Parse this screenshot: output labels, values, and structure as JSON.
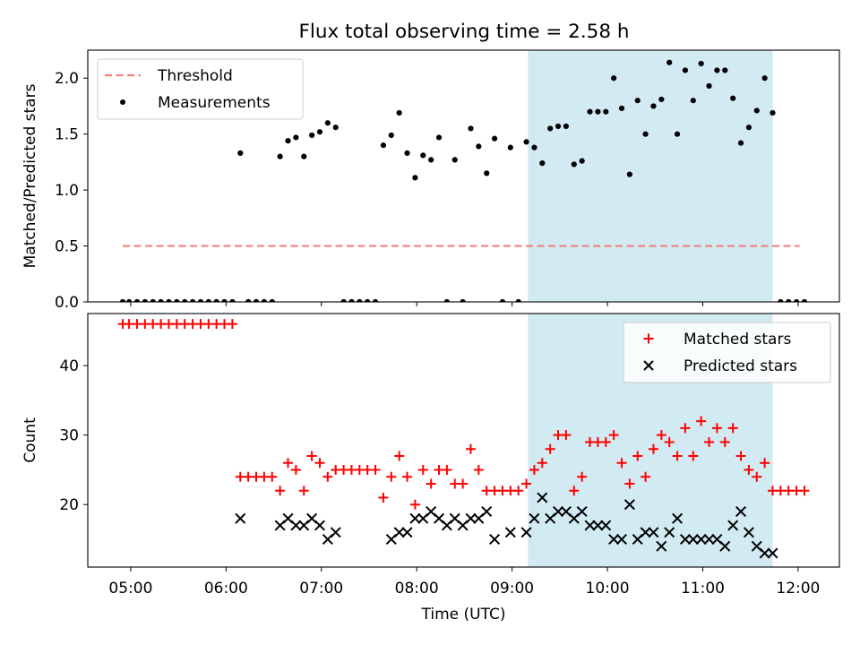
{
  "title": "Flux total observing time = 2.58 h",
  "colors": {
    "threshold": "#f08080",
    "measurement": "#000000",
    "matched": "#ff0000",
    "predicted": "#000000",
    "shade": "#add8e6"
  },
  "chart_data": [
    {
      "type": "scatter",
      "ylabel": "Matched/Predicted stars",
      "xlim": [
        "04:33",
        "12:26"
      ],
      "ylim": [
        0,
        2.25
      ],
      "yticks": [
        "0.0",
        "0.5",
        "1.0",
        "1.5",
        "2.0"
      ],
      "shaded_region": [
        "09:10",
        "11:44"
      ],
      "legend_position": "upper-left",
      "series": [
        {
          "name": "Threshold",
          "style": "dashed-line",
          "x": [
            "04:55",
            "12:01"
          ],
          "y": [
            0.5,
            0.5
          ]
        },
        {
          "name": "Measurements",
          "style": "dot",
          "x": [
            "04:55",
            "04:59",
            "05:04",
            "05:09",
            "05:14",
            "05:19",
            "05:24",
            "05:29",
            "05:34",
            "05:39",
            "05:44",
            "05:49",
            "05:54",
            "05:59",
            "06:04",
            "06:09",
            "06:14",
            "06:19",
            "06:24",
            "06:29",
            "06:34",
            "06:39",
            "06:44",
            "06:49",
            "06:54",
            "06:59",
            "07:04",
            "07:09",
            "07:14",
            "07:19",
            "07:24",
            "07:29",
            "07:34",
            "07:39",
            "07:44",
            "07:49",
            "07:54",
            "07:59",
            "08:04",
            "08:09",
            "08:14",
            "08:19",
            "08:24",
            "08:29",
            "08:34",
            "08:39",
            "08:44",
            "08:49",
            "08:54",
            "08:59",
            "09:04",
            "09:09",
            "09:14",
            "09:19",
            "09:24",
            "09:29",
            "09:34",
            "09:39",
            "09:44",
            "09:49",
            "09:54",
            "09:59",
            "10:04",
            "10:09",
            "10:14",
            "10:19",
            "10:24",
            "10:29",
            "10:34",
            "10:39",
            "10:44",
            "10:49",
            "10:54",
            "10:59",
            "11:04",
            "11:09",
            "11:14",
            "11:19",
            "11:24",
            "11:29",
            "11:34",
            "11:39",
            "11:44",
            "11:49",
            "11:54",
            "11:59",
            "12:04"
          ],
          "y": [
            0,
            0,
            0,
            0,
            0,
            0,
            0,
            0,
            0,
            0,
            0,
            0,
            0,
            0,
            0,
            1.33,
            0,
            0,
            0,
            0,
            1.3,
            1.44,
            1.47,
            1.3,
            1.49,
            1.52,
            1.6,
            1.56,
            0,
            0,
            0,
            0,
            0,
            1.4,
            1.49,
            1.69,
            1.33,
            1.11,
            1.31,
            1.27,
            1.47,
            0,
            1.27,
            0,
            1.55,
            1.39,
            1.15,
            1.46,
            0,
            1.38,
            0,
            1.43,
            1.38,
            1.24,
            1.55,
            1.57,
            1.57,
            1.23,
            1.26,
            1.7,
            1.7,
            1.7,
            2.0,
            1.73,
            1.14,
            1.8,
            1.5,
            1.75,
            1.81,
            2.14,
            1.5,
            2.07,
            1.8,
            2.13,
            1.93,
            2.07,
            2.07,
            1.82,
            1.42,
            1.56,
            1.71,
            2.0,
            1.69,
            0,
            0,
            0,
            0
          ]
        }
      ]
    },
    {
      "type": "scatter",
      "xlabel": "Time (UTC)",
      "ylabel": "Count",
      "xlim": [
        "04:33",
        "12:26"
      ],
      "ylim": [
        11,
        47.5
      ],
      "yticks": [
        "20",
        "30",
        "40"
      ],
      "xticks": [
        "05:00",
        "06:00",
        "07:00",
        "08:00",
        "09:00",
        "10:00",
        "11:00",
        "12:00"
      ],
      "shaded_region": [
        "09:10",
        "11:44"
      ],
      "legend_position": "upper-right",
      "series": [
        {
          "name": "Matched stars",
          "style": "plus",
          "x": [
            "04:55",
            "04:59",
            "05:04",
            "05:09",
            "05:14",
            "05:19",
            "05:24",
            "05:29",
            "05:34",
            "05:39",
            "05:44",
            "05:49",
            "05:54",
            "05:59",
            "06:04",
            "06:09",
            "06:14",
            "06:19",
            "06:24",
            "06:29",
            "06:34",
            "06:39",
            "06:44",
            "06:49",
            "06:54",
            "06:59",
            "07:04",
            "07:09",
            "07:14",
            "07:19",
            "07:24",
            "07:29",
            "07:34",
            "07:39",
            "07:44",
            "07:49",
            "07:54",
            "07:59",
            "08:04",
            "08:09",
            "08:14",
            "08:19",
            "08:24",
            "08:29",
            "08:34",
            "08:39",
            "08:44",
            "08:49",
            "08:54",
            "08:59",
            "09:04",
            "09:09",
            "09:14",
            "09:19",
            "09:24",
            "09:29",
            "09:34",
            "09:39",
            "09:44",
            "09:49",
            "09:54",
            "09:59",
            "10:04",
            "10:09",
            "10:14",
            "10:19",
            "10:24",
            "10:29",
            "10:34",
            "10:39",
            "10:44",
            "10:49",
            "10:54",
            "10:59",
            "11:04",
            "11:09",
            "11:14",
            "11:19",
            "11:24",
            "11:29",
            "11:34",
            "11:39",
            "11:44",
            "11:49",
            "11:54",
            "11:59",
            "12:04"
          ],
          "y": [
            46,
            46,
            46,
            46,
            46,
            46,
            46,
            46,
            46,
            46,
            46,
            46,
            46,
            46,
            46,
            24,
            24,
            24,
            24,
            24,
            22,
            26,
            25,
            22,
            27,
            26,
            24,
            25,
            25,
            25,
            25,
            25,
            25,
            21,
            24,
            27,
            24,
            20,
            25,
            23,
            25,
            25,
            23,
            23,
            28,
            25,
            22,
            22,
            22,
            22,
            22,
            23,
            25,
            26,
            28,
            30,
            30,
            22,
            24,
            29,
            29,
            29,
            30,
            26,
            23,
            27,
            24,
            28,
            30,
            29,
            27,
            31,
            27,
            32,
            29,
            31,
            29,
            31,
            27,
            25,
            24,
            26,
            22,
            22,
            22,
            22,
            22
          ]
        }
      ],
      "predicted": {
        "name": "Predicted stars",
        "style": "x",
        "x": [
          "06:09",
          "06:34",
          "06:39",
          "06:44",
          "06:49",
          "06:54",
          "06:59",
          "07:04",
          "07:09",
          "07:44",
          "07:49",
          "07:54",
          "07:59",
          "08:04",
          "08:09",
          "08:14",
          "08:19",
          "08:24",
          "08:29",
          "08:34",
          "08:39",
          "08:44",
          "08:49",
          "08:59",
          "09:09",
          "09:14",
          "09:19",
          "09:24",
          "09:29",
          "09:34",
          "09:39",
          "09:44",
          "09:49",
          "09:54",
          "09:59",
          "10:04",
          "10:09",
          "10:14",
          "10:19",
          "10:24",
          "10:29",
          "10:34",
          "10:39",
          "10:44",
          "10:49",
          "10:54",
          "10:59",
          "11:04",
          "11:09",
          "11:14",
          "11:19",
          "11:24",
          "11:29",
          "11:34",
          "11:39",
          "11:44"
        ],
        "y": [
          18,
          17,
          18,
          17,
          17,
          18,
          17,
          15,
          16,
          15,
          16,
          16,
          18,
          18,
          19,
          18,
          17,
          18,
          17,
          18,
          18,
          19,
          15,
          16,
          16,
          18,
          21,
          18,
          19,
          19,
          18,
          19,
          17,
          17,
          17,
          15,
          15,
          20,
          15,
          16,
          16,
          14,
          16,
          18,
          15,
          15,
          15,
          15,
          15,
          14,
          17,
          19,
          16,
          14,
          13,
          13
        ]
      }
    }
  ]
}
